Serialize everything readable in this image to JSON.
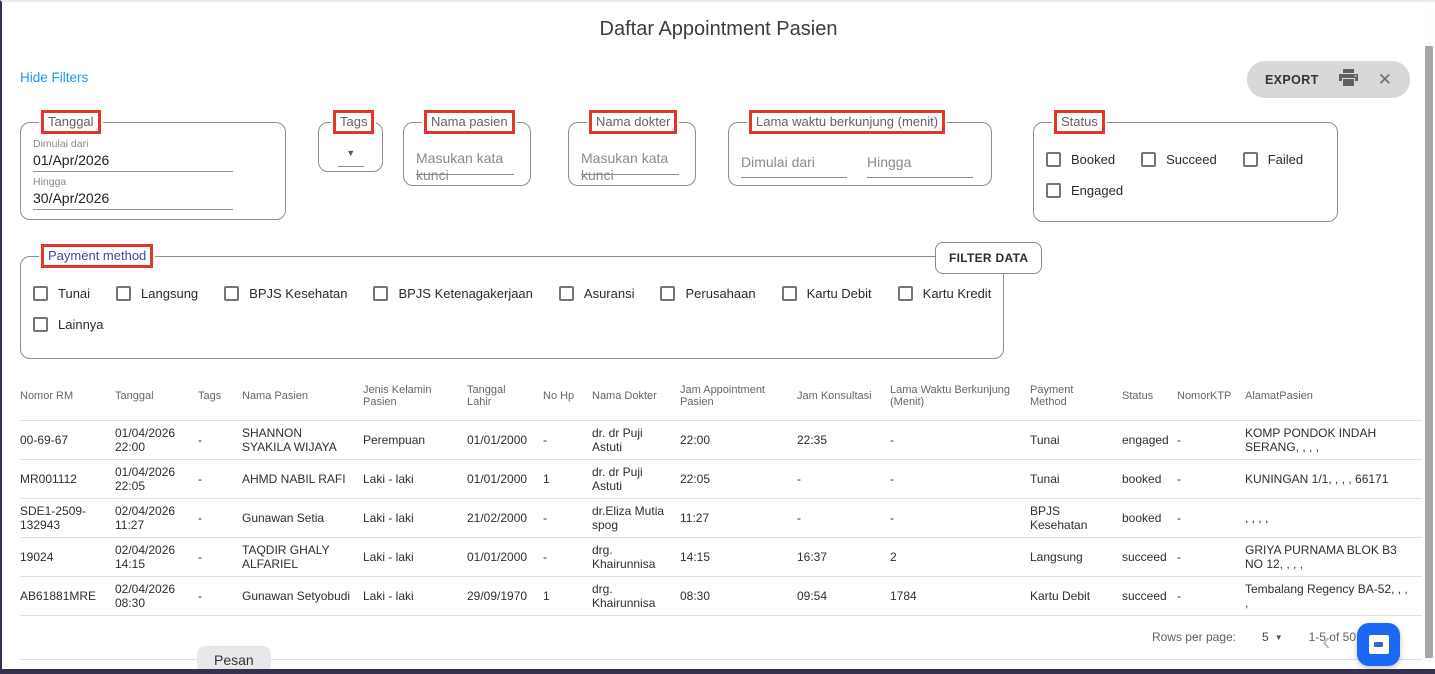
{
  "title": "Daftar Appointment Pasien",
  "hide_filters_label": "Hide Filters",
  "export": {
    "label": "EXPORT",
    "printer_icon": "printer-icon",
    "close_icon": "close-icon"
  },
  "filters": {
    "tanggal": {
      "legend": "Tanggal",
      "from_label": "Dimulai dari",
      "from_value": "01/Apr/2026",
      "to_label": "Hingga",
      "to_value": "30/Apr/2026"
    },
    "tags": {
      "legend": "Tags",
      "dropdown_icon": "chevron-down-icon"
    },
    "nama_pasien": {
      "legend": "Nama pasien",
      "placeholder": "Masukan kata kunci"
    },
    "nama_dokter": {
      "legend": "Nama dokter",
      "placeholder": "Masukan kata kunci"
    },
    "lama_waktu": {
      "legend": "Lama waktu berkunjung (menit)",
      "from_placeholder": "Dimulai dari",
      "to_placeholder": "Hingga"
    },
    "status": {
      "legend": "Status",
      "option_rows": [
        [
          "Booked",
          "Succeed",
          "Failed"
        ],
        [
          "Engaged"
        ]
      ]
    },
    "payment": {
      "legend": "Payment method",
      "option_rows": [
        [
          "Tunai",
          "Langsung",
          "BPJS Kesehatan",
          "BPJS Ketenagakerjaan",
          "Asuransi",
          "Perusahaan",
          "Kartu Debit",
          "Kartu Kredit"
        ],
        [
          "Lainnya"
        ]
      ]
    }
  },
  "filter_button_label": "FILTER DATA",
  "table": {
    "headers": [
      "Nomor RM",
      "Tanggal",
      "Tags",
      "Nama Pasien",
      "Jenis Kelamin Pasien",
      "Tanggal Lahir",
      "No Hp",
      "Nama Dokter",
      "Jam Appointment Pasien",
      "Jam Konsultasi",
      "Lama Waktu Berkunjung (Menit)",
      "Payment Method",
      "Status",
      "NomorKTP",
      "AlamatPasien"
    ],
    "rows": [
      [
        "00-69-67",
        "01/04/2026 22:00",
        "-",
        "SHANNON SYAKILA WIJAYA",
        "Perempuan",
        "01/01/2000",
        "-",
        "dr. dr Puji Astuti",
        "22:00",
        "22:35",
        "-",
        "Tunai",
        "engaged",
        "-",
        "KOMP PONDOK INDAH SERANG, , , ,"
      ],
      [
        "MR001112",
        "01/04/2026 22:05",
        "-",
        "AHMD NABIL RAFI",
        "Laki - laki",
        "01/01/2000",
        "1",
        "dr. dr Puji Astuti",
        "22:05",
        "-",
        "-",
        "Tunai",
        "booked",
        "-",
        "KUNINGAN 1/1, , , , 66171"
      ],
      [
        "SDE1-2509-132943",
        "02/04/2026 11:27",
        "-",
        "Gunawan Setia",
        "Laki - laki",
        "21/02/2000",
        "-",
        "dr.Eliza Mutia spog",
        "11:27",
        "-",
        "-",
        "BPJS Kesehatan",
        "booked",
        "-",
        ", , , ,"
      ],
      [
        "19024",
        "02/04/2026 14:15",
        "-",
        "TAQDIR GHALY ALFARIEL",
        "Laki - laki",
        "01/01/2000",
        "-",
        "drg. Khairunnisa",
        "14:15",
        "16:37",
        "2",
        "Langsung",
        "succeed",
        "-",
        "GRIYA PURNAMA BLOK B3 NO 12, , , ,"
      ],
      [
        "AB61881MRE",
        "02/04/2026 08:30",
        "-",
        "Gunawan Setyobudi",
        "Laki - laki",
        "29/09/1970",
        "1",
        "drg. Khairunnisa",
        "08:30",
        "09:54",
        "1784",
        "Kartu Debit",
        "succeed",
        "-",
        "Tembalang Regency BA-52, , , ,"
      ]
    ]
  },
  "pagination": {
    "rows_per_page_label": "Rows per page:",
    "rows_per_page_value": "5",
    "range_label": "1-5 of 50",
    "prev_icon": "chevron-left-icon"
  },
  "pesan_button_label": "Pesan",
  "colors": {
    "annotation_red": "#e4352b",
    "link_blue": "#2196f3",
    "fab_blue": "#1b68f2",
    "payment_legend_blue": "#3949ab",
    "frame_navy": "#34304e"
  }
}
